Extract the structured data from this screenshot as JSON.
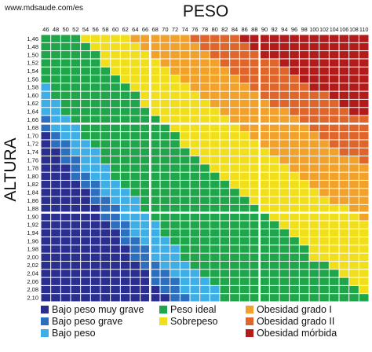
{
  "watermark": "www.mdsaude.com/es",
  "chart_data": {
    "type": "heatmap",
    "title": "PESO",
    "xlabel": "PESO",
    "ylabel": "ALTURA",
    "x_unit_note": "",
    "x_labels": [
      "46",
      "48",
      "50",
      "52",
      "54",
      "56",
      "58",
      "60",
      "62",
      "64",
      "66",
      "68",
      "70",
      "72",
      "74",
      "76",
      "78",
      "80",
      "82",
      "84",
      "86",
      "88",
      "90",
      "92",
      "94",
      "96",
      "98",
      "100",
      "102",
      "104",
      "106",
      "108",
      "110"
    ],
    "y_labels": [
      "1,46",
      "1,48",
      "1,50",
      "1,52",
      "1,54",
      "1,56",
      "1,58",
      "1,60",
      "1,62",
      "1,64",
      "1,66",
      "1,68",
      "1,70",
      "1,72",
      "1,74",
      "1,76",
      "1,78",
      "1,80",
      "1,82",
      "1,84",
      "1,86",
      "1,88",
      "1,90",
      "1,92",
      "1,94",
      "1,96",
      "1,98",
      "2,00",
      "2,02",
      "2,04",
      "2,06",
      "2,08",
      "2,10"
    ],
    "x_values": [
      46,
      48,
      50,
      52,
      54,
      56,
      58,
      60,
      62,
      64,
      66,
      68,
      70,
      72,
      74,
      76,
      78,
      80,
      82,
      84,
      86,
      88,
      90,
      92,
      94,
      96,
      98,
      100,
      102,
      104,
      106,
      108,
      110
    ],
    "y_values": [
      1.46,
      1.48,
      1.5,
      1.52,
      1.54,
      1.56,
      1.58,
      1.6,
      1.62,
      1.64,
      1.66,
      1.68,
      1.7,
      1.72,
      1.74,
      1.76,
      1.78,
      1.8,
      1.82,
      1.84,
      1.86,
      1.88,
      1.9,
      1.92,
      1.94,
      1.96,
      1.98,
      2.0,
      2.02,
      2.04,
      2.06,
      2.08,
      2.1
    ],
    "categories": [
      {
        "label": "Bajo peso muy grave",
        "color": "#2a2f8f",
        "bmi_max": 16
      },
      {
        "label": "Bajo peso grave",
        "color": "#2c6fbf",
        "bmi_max": 17
      },
      {
        "label": "Bajo peso",
        "color": "#3eaee6",
        "bmi_max": 18.5
      },
      {
        "label": "Peso ideal",
        "color": "#1fa64a",
        "bmi_max": 25
      },
      {
        "label": "Sobrepeso",
        "color": "#f2df1c",
        "bmi_max": 30
      },
      {
        "label": "Obesidad grado I",
        "color": "#f2a12a",
        "bmi_max": 35
      },
      {
        "label": "Obesidad grado II",
        "color": "#e0652a",
        "bmi_max": 40
      },
      {
        "label": "Obesidad mórbida",
        "color": "#b31a1a",
        "bmi_max": null
      }
    ],
    "cell_rule": "category determined by BMI = weight_kg / height_m^2",
    "major_grid_x_after": [
      "66",
      "88"
    ],
    "major_grid_y_after": [
      "1,66",
      "1,88"
    ]
  }
}
